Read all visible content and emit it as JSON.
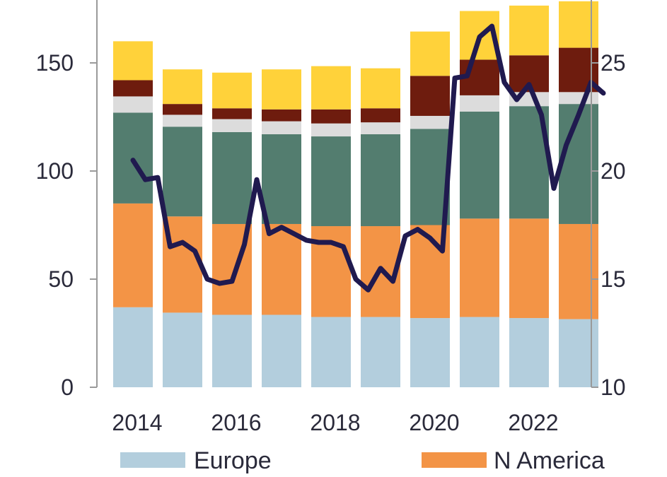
{
  "chart_data": {
    "type": "bar",
    "stacked": true,
    "x": [
      2014,
      2015,
      2016,
      2017,
      2018,
      2019,
      2020,
      2021,
      2022,
      2023
    ],
    "x_ticks": [
      "2014",
      "2016",
      "2018",
      "2020",
      "2022"
    ],
    "left_axis": {
      "ylim": [
        0,
        175
      ],
      "ticks": [
        "0",
        "50",
        "100",
        "150"
      ],
      "tick_values": [
        0,
        50,
        100,
        150
      ]
    },
    "right_axis": {
      "ylim": [
        10,
        28
      ],
      "ticks": [
        "10",
        "15",
        "20",
        "25"
      ],
      "tick_values": [
        10,
        15,
        20,
        25
      ]
    },
    "series": [
      {
        "name": "Europe",
        "color": "#b3cedd",
        "values": [
          37,
          34.5,
          33.5,
          33.5,
          32.5,
          32.5,
          32,
          32.5,
          32,
          31.5
        ]
      },
      {
        "name": "N America",
        "color": "#f39446",
        "values": [
          48,
          44.5,
          42,
          42,
          42,
          42,
          43,
          45.5,
          46,
          44
        ]
      },
      {
        "color": "#537d6f",
        "values": [
          42,
          41.5,
          42.5,
          41.5,
          41.5,
          42.5,
          44.5,
          49.5,
          52,
          55.5
        ]
      },
      {
        "color": "#dcdcdc",
        "values": [
          7.5,
          5.5,
          6,
          6,
          6,
          5.5,
          6,
          7.5,
          6.5,
          5.5
        ]
      },
      {
        "color": "#6e1c0e",
        "values": [
          7.5,
          5,
          5,
          5.5,
          6.5,
          6.5,
          18.5,
          16.5,
          17,
          20.5
        ]
      },
      {
        "color": "#ffd23a",
        "values": [
          18,
          16,
          16.5,
          18.5,
          20,
          18.5,
          20.5,
          22.5,
          23,
          21.5
        ]
      }
    ],
    "line": {
      "axis": "right",
      "color": "#201a4f",
      "x": [
        2014.0,
        2014.25,
        2014.5,
        2014.75,
        2015.0,
        2015.25,
        2015.5,
        2015.75,
        2016.0,
        2016.25,
        2016.5,
        2016.75,
        2017.0,
        2017.25,
        2017.5,
        2017.75,
        2018.0,
        2018.25,
        2018.5,
        2018.75,
        2019.0,
        2019.25,
        2019.5,
        2019.75,
        2020.0,
        2020.25,
        2020.5,
        2020.75,
        2021.0,
        2021.25,
        2021.5,
        2021.75,
        2022.0,
        2022.25,
        2022.5,
        2022.75,
        2023.0,
        2023.25,
        2023.5
      ],
      "values": [
        20.5,
        19.6,
        19.7,
        16.5,
        16.7,
        16.3,
        15.0,
        14.8,
        14.9,
        16.6,
        19.6,
        17.1,
        17.4,
        17.1,
        16.8,
        16.7,
        16.7,
        16.5,
        15.0,
        14.5,
        15.5,
        14.9,
        17.0,
        17.3,
        16.9,
        16.3,
        24.3,
        24.4,
        26.2,
        26.7,
        24.1,
        23.3,
        24.0,
        22.6,
        19.2,
        21.2,
        22.6,
        24.1,
        23.6
      ]
    }
  },
  "legend": [
    {
      "label": "Europe",
      "color": "#b3cedd"
    },
    {
      "label": "N America",
      "color": "#f39446"
    }
  ]
}
